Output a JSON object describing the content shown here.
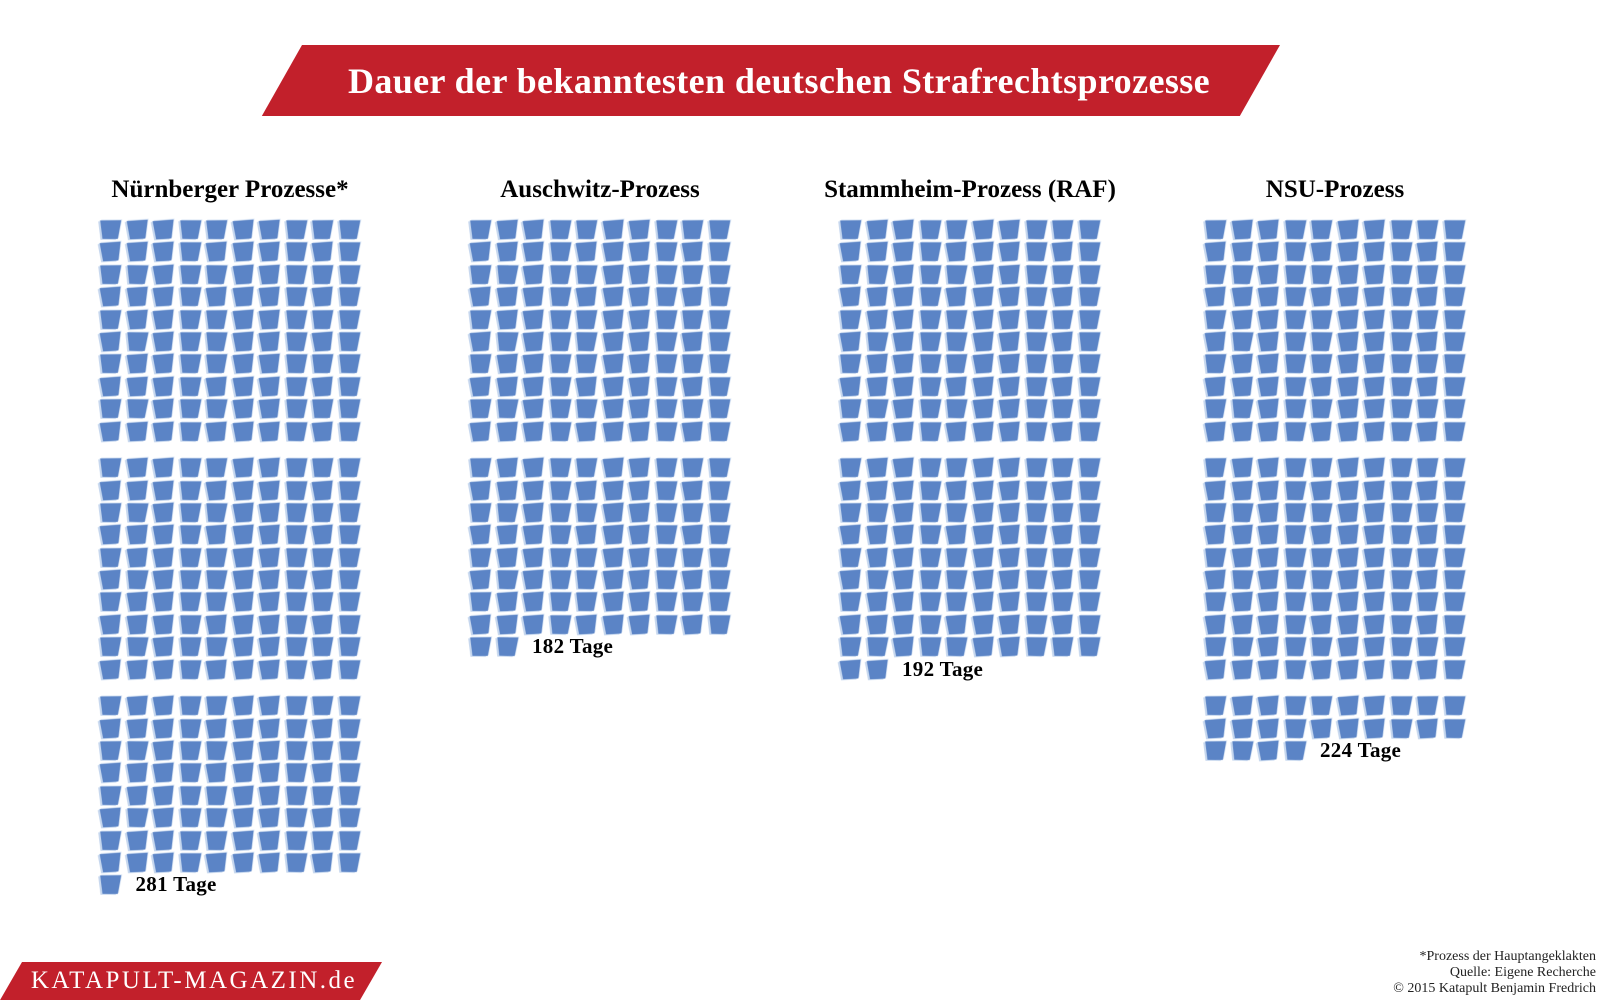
{
  "banner": {
    "title": "Dauer der bekanntesten deutschen Strafrechtsprozesse",
    "background_color": "#C2202B",
    "text_color": "#FFFFFF"
  },
  "chart_data": {
    "type": "pictogram",
    "title": "Dauer der bekanntesten deutschen Strafrechtsprozesse",
    "unit": "Tage",
    "icon": "blue-trapezoid-day-icon",
    "icon_color": "#5B84C6",
    "icon_outline_color": "#C6D7EE",
    "icons_per_row": 10,
    "rows_per_block": 10,
    "series": [
      {
        "name": "Nürnberger Prozesse*",
        "value": 281,
        "label": "281 Tage"
      },
      {
        "name": "Auschwitz-Prozess",
        "value": 182,
        "label": "182 Tage"
      },
      {
        "name": "Stammheim-Prozess (RAF)",
        "value": 192,
        "label": "192 Tage"
      },
      {
        "name": "NSU-Prozess",
        "value": 224,
        "label": "224 Tage"
      }
    ]
  },
  "brand": {
    "text": "KATAPULT-MAGAZIN.de"
  },
  "footer": {
    "note": "*Prozess der Hauptangeklakten",
    "source": "Quelle: Eigene Recherche",
    "copyright": "© 2015 Katapult Benjamin Fredrich"
  }
}
